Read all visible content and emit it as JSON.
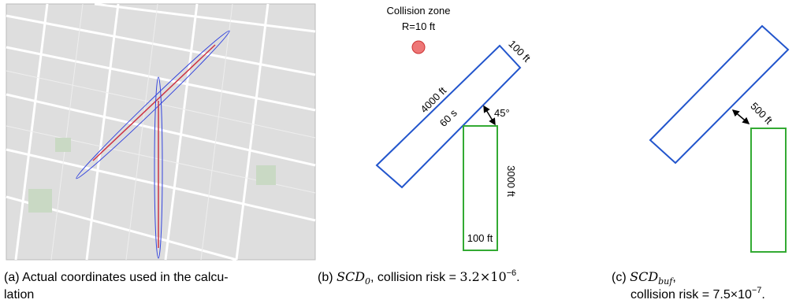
{
  "panel_a": {
    "caption": [
      "(a) Actual coordinates used in the calcu-",
      "lation"
    ]
  },
  "panel_b": {
    "zone_title": "Collision zone",
    "zone_radius": "R=10 ft",
    "width_label": "100 ft",
    "length_label": "4000 ft",
    "time_label": "60 s",
    "angle_label": "45°",
    "green_length_label": "3000 ft",
    "green_width_label": "100 ft",
    "caption": {
      "prefix": "(b) ",
      "math": "SCD",
      "sub": "0",
      "text": ", collision risk = ",
      "value": "3.2×10",
      "sup": "−6",
      "end": "."
    }
  },
  "panel_c": {
    "buffer_label": "500 ft",
    "caption": {
      "prefix": "(c) ",
      "math": "SCD",
      "sub": "buf",
      "comma": ",",
      "text": "collision risk = ",
      "value": "7.5×10",
      "sup": "−7",
      "end": "."
    }
  }
}
